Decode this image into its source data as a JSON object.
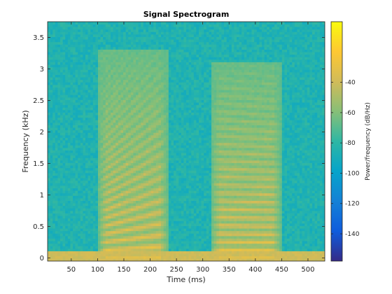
{
  "chart_data": {
    "type": "heatmap",
    "title": "Signal Spectrogram",
    "xlabel": "Time (ms)",
    "ylabel": "Frequency (kHz)",
    "xlim": [
      5,
      532
    ],
    "ylim": [
      -0.05,
      3.75
    ],
    "x_ticks": [
      50,
      100,
      150,
      200,
      250,
      300,
      350,
      400,
      450,
      500
    ],
    "y_ticks": [
      0,
      0.5,
      1,
      1.5,
      2,
      2.5,
      3,
      3.5
    ],
    "colorbar": {
      "label": "Power/frequency (dB/Hz)",
      "range": [
        -158,
        0
      ],
      "ticks": [
        -40,
        -60,
        -80,
        -100,
        -120,
        -140
      ],
      "colormap": "parula",
      "colors": [
        "#352a87",
        "#0f5cdd",
        "#1481d6",
        "#06a4ca",
        "#2eb7a4",
        "#87bf77",
        "#d1bb59",
        "#fec832",
        "#f9fb0e"
      ]
    },
    "segments": [
      {
        "t_start": 100,
        "t_end": 235,
        "f0_start": 0.12,
        "f0_end": 0.19,
        "fmax": 3.2
      },
      {
        "t_start": 315,
        "t_end": 450,
        "f0_start": 0.13,
        "f0_end": 0.125,
        "fmax": 3.0
      }
    ],
    "noise_floor_db": -85,
    "low_band_db": -40
  }
}
